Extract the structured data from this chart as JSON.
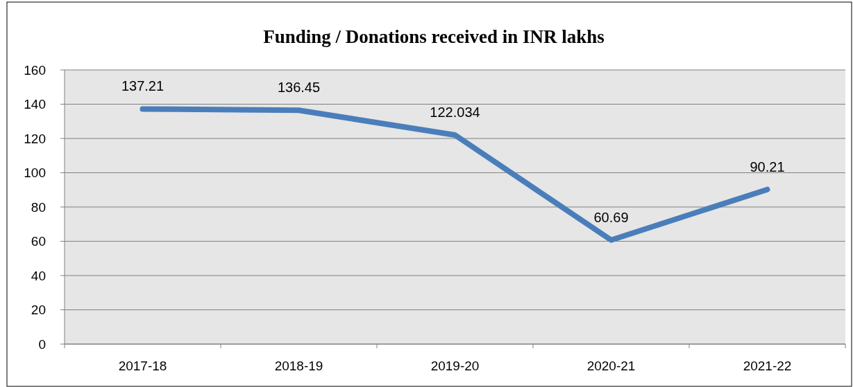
{
  "chart_data": {
    "type": "line",
    "title": "Funding / Donations received in INR lakhs",
    "categories": [
      "2017-18",
      "2018-19",
      "2019-20",
      "2020-21",
      "2021-22"
    ],
    "series": [
      {
        "color": "#4a7ebb",
        "values": [
          137.21,
          136.45,
          122.034,
          60.69,
          90.21
        ]
      }
    ],
    "ylim": [
      0,
      160
    ],
    "yticks": [
      0,
      20,
      40,
      60,
      80,
      100,
      120,
      140,
      160
    ],
    "grid": "y",
    "data_labels": true,
    "marker": "none"
  }
}
